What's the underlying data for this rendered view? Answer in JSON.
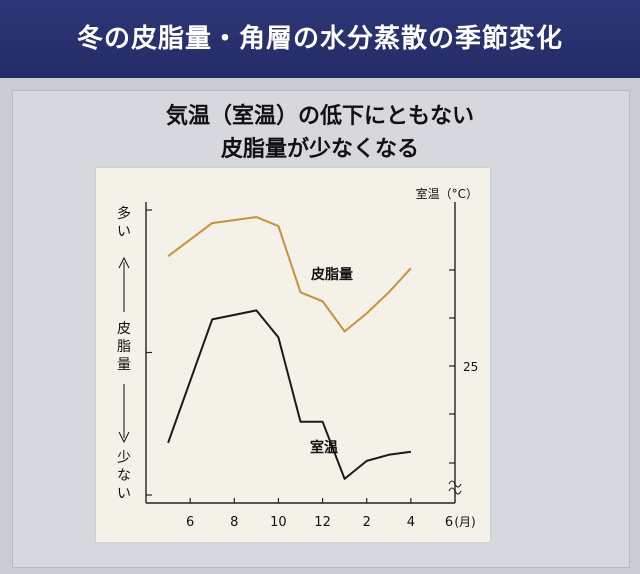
{
  "banner": {
    "title": "冬の皮脂量・角層の水分蒸散の季節変化"
  },
  "headline": {
    "line1": "気温（室温）の低下にともない",
    "line2": "皮脂量が少なくなる"
  },
  "chart_data": {
    "type": "line",
    "categories": [
      "6",
      "8",
      "10",
      "12",
      "2",
      "4",
      "6"
    ],
    "x_unit": "(月)",
    "left_axis": {
      "top_label": "多い",
      "middle_label": "皮脂量",
      "bottom_label": "少ない"
    },
    "right_axis": {
      "title": "室温（°C）",
      "tick_label": "25"
    },
    "series": [
      {
        "name": "皮脂量",
        "color": "#c8913d",
        "x": [
          5,
          7,
          9,
          10,
          11,
          12,
          13,
          14,
          15,
          16
        ],
        "values": [
          0.82,
          0.93,
          0.95,
          0.92,
          0.7,
          0.67,
          0.57,
          0.63,
          0.7,
          0.78
        ]
      },
      {
        "name": "室温",
        "color": "#1a1a1a",
        "x": [
          5,
          7,
          9,
          10,
          11,
          12,
          13,
          14,
          15,
          16
        ],
        "values": [
          0.2,
          0.61,
          0.64,
          0.55,
          0.27,
          0.27,
          0.08,
          0.14,
          0.16,
          0.17
        ]
      }
    ]
  }
}
